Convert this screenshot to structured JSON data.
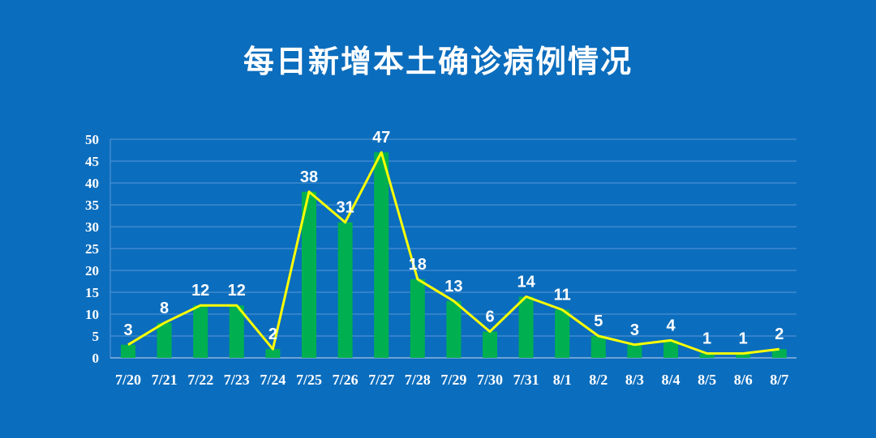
{
  "chart_data": {
    "type": "bar",
    "title": "每日新增本土确诊病例情况",
    "categories": [
      "7/20",
      "7/21",
      "7/22",
      "7/23",
      "7/24",
      "7/25",
      "7/26",
      "7/27",
      "7/28",
      "7/29",
      "7/30",
      "7/31",
      "8/1",
      "8/2",
      "8/3",
      "8/4",
      "8/5",
      "8/6",
      "8/7"
    ],
    "values": [
      3,
      8,
      12,
      12,
      2,
      38,
      31,
      47,
      18,
      13,
      6,
      14,
      11,
      5,
      3,
      4,
      1,
      1,
      2
    ],
    "overlay_line": true,
    "xlabel": "",
    "ylabel": "",
    "ylim": [
      0,
      50
    ],
    "yticks": [
      0,
      5,
      10,
      15,
      20,
      25,
      30,
      35,
      40,
      45,
      50
    ],
    "grid": true,
    "colors": {
      "background": "#0b6dbd",
      "bar": "#00b050",
      "line": "#ffff00",
      "grid": "#4a8fd2"
    }
  }
}
